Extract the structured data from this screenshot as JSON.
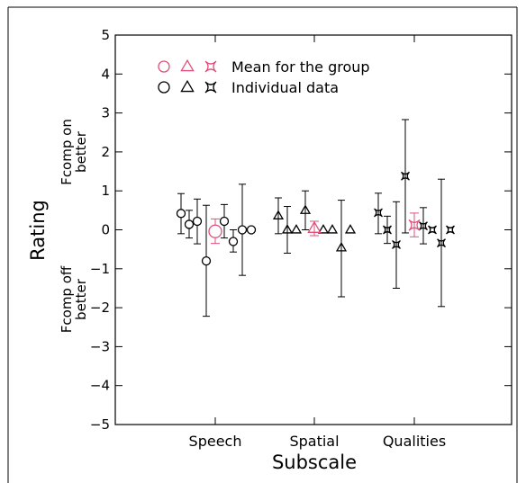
{
  "chart_data": {
    "type": "scatter",
    "ylabel": "Rating",
    "xlabel": "Subscale",
    "ylim": [
      -5,
      5
    ],
    "yticks": [
      5,
      4,
      3,
      2,
      1,
      0,
      -1,
      -2,
      -3,
      -4,
      -5
    ],
    "categories": [
      "Speech",
      "Spatial",
      "Qualities"
    ],
    "annotations": {
      "upper": [
        "Fcomp on",
        "better"
      ],
      "lower": [
        "Fcomp off",
        "better"
      ]
    },
    "legend": {
      "placement": "top-left",
      "entries": [
        {
          "label": "Mean for the group",
          "color": "#e0507a",
          "markers": [
            "circle",
            "triangle",
            "star"
          ]
        },
        {
          "label": "Individual data",
          "color": "#000000",
          "markers": [
            "circle",
            "triangle",
            "star"
          ]
        }
      ]
    },
    "colors": {
      "mean": "#e0507a",
      "individual": "#000000"
    },
    "series": [
      {
        "name": "Individual data",
        "marker": "circle",
        "category": "Speech",
        "points": [
          {
            "pos": -0.38,
            "y": 0.42,
            "lo": -0.1,
            "hi": 0.93
          },
          {
            "pos": -0.29,
            "y": 0.14,
            "lo": -0.21,
            "hi": 0.5
          },
          {
            "pos": -0.2,
            "y": 0.22,
            "lo": -0.36,
            "hi": 0.79
          },
          {
            "pos": -0.1,
            "y": -0.8,
            "lo": -2.22,
            "hi": 0.63
          },
          {
            "pos": 0.1,
            "y": 0.22,
            "lo": -0.21,
            "hi": 0.65
          },
          {
            "pos": 0.2,
            "y": -0.3,
            "lo": -0.57,
            "hi": 0.0
          },
          {
            "pos": 0.3,
            "y": 0.0,
            "lo": -1.17,
            "hi": 1.17
          },
          {
            "pos": 0.4,
            "y": 0.0
          }
        ]
      },
      {
        "name": "Mean for the group",
        "marker": "circle",
        "category": "Speech",
        "points": [
          {
            "pos": 0.0,
            "y": -0.04,
            "lo": -0.35,
            "hi": 0.28
          }
        ]
      },
      {
        "name": "Individual data",
        "marker": "triangle",
        "category": "Spatial",
        "points": [
          {
            "pos": -0.4,
            "y": 0.36,
            "lo": -0.1,
            "hi": 0.82
          },
          {
            "pos": -0.3,
            "y": 0.0,
            "lo": -0.6,
            "hi": 0.6
          },
          {
            "pos": -0.2,
            "y": 0.0
          },
          {
            "pos": -0.1,
            "y": 0.5,
            "lo": 0.0,
            "hi": 1.0
          },
          {
            "pos": 0.1,
            "y": 0.0
          },
          {
            "pos": 0.2,
            "y": 0.0
          },
          {
            "pos": 0.3,
            "y": -0.46,
            "lo": -1.72,
            "hi": 0.76
          },
          {
            "pos": 0.4,
            "y": 0.0
          }
        ]
      },
      {
        "name": "Mean for the group",
        "marker": "triangle",
        "category": "Spatial",
        "points": [
          {
            "pos": 0.0,
            "y": 0.04,
            "lo": -0.15,
            "hi": 0.22
          }
        ]
      },
      {
        "name": "Individual data",
        "marker": "star",
        "category": "Qualities",
        "points": [
          {
            "pos": -0.4,
            "y": 0.44,
            "lo": -0.1,
            "hi": 0.94
          },
          {
            "pos": -0.3,
            "y": 0.0,
            "lo": -0.35,
            "hi": 0.35
          },
          {
            "pos": -0.2,
            "y": -0.38,
            "lo": -1.5,
            "hi": 0.72
          },
          {
            "pos": -0.1,
            "y": 1.38,
            "lo": -0.08,
            "hi": 2.83
          },
          {
            "pos": 0.1,
            "y": 0.1,
            "lo": -0.36,
            "hi": 0.57
          },
          {
            "pos": 0.2,
            "y": 0.0
          },
          {
            "pos": 0.3,
            "y": -0.34,
            "lo": -1.97,
            "hi": 1.3
          },
          {
            "pos": 0.4,
            "y": 0.0
          }
        ]
      },
      {
        "name": "Mean for the group",
        "marker": "star",
        "category": "Qualities",
        "points": [
          {
            "pos": 0.0,
            "y": 0.12,
            "lo": -0.18,
            "hi": 0.43
          }
        ]
      }
    ]
  }
}
